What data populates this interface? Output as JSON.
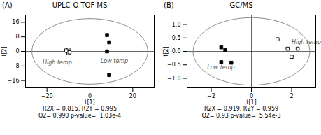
{
  "chart_data": [
    {
      "type": "scatter",
      "label": "(A)",
      "title": "UPLC-Q-TOF MS",
      "xlabel": "t[1]",
      "ylabel": "t[2]",
      "xlim": [
        -30,
        30
      ],
      "ylim": [
        -20,
        20
      ],
      "xticks": [
        -20,
        0,
        20
      ],
      "yticks": [
        -16,
        -8,
        0,
        8,
        16
      ],
      "series": [
        {
          "marker": "open square",
          "color": "black",
          "x": [
            -10,
            -10.5,
            -10,
            -11,
            -9.5
          ],
          "values": [
            1.0,
            0.0,
            -1.0,
            0.5,
            -0.5
          ]
        },
        {
          "marker": "filled square",
          "color": "black",
          "x": [
            8,
            9,
            8,
            9
          ],
          "values": [
            9,
            5,
            0,
            -13
          ]
        }
      ],
      "annotations": [
        {
          "text": "High temp",
          "x": -22,
          "y": -5,
          "color": "#555555"
        },
        {
          "text": "Low temp",
          "x": 5,
          "y": -4,
          "color": "#555555"
        }
      ],
      "ellipse": {
        "cx": 0,
        "cy": 0,
        "width": 54,
        "height": 36,
        "color": "#888888"
      },
      "hlines": [
        0
      ],
      "vlines": [
        0
      ],
      "caption": [
        "R2X = 0.815, R2Y = 0.995",
        "Q2= 0.990 p-value=  1.03e-4"
      ]
    },
    {
      "type": "scatter",
      "label": "(B)",
      "title": "GC/MS",
      "xlabel": "t[1]",
      "ylabel": "t[2]",
      "xlim": [
        -3.2,
        3.2
      ],
      "ylim": [
        -1.35,
        1.35
      ],
      "xticks": [
        -2.0,
        0.0,
        2.0
      ],
      "yticks": [
        {
          "value": -1.0,
          "label": "−1.0"
        },
        -0.5,
        {
          "value": 0.0,
          "label": "0.0"
        },
        0.5,
        {
          "value": 1.0,
          "label": "1.0"
        }
      ],
      "series": [
        {
          "marker": "open square",
          "color": "black",
          "x": [
            1.3,
            1.8,
            2.3,
            2.0
          ],
          "values": [
            0.45,
            0.1,
            0.1,
            -0.2
          ]
        },
        {
          "marker": "filled square",
          "color": "black",
          "x": [
            -1.5,
            -1.3,
            -1.5,
            -1.0
          ],
          "values": [
            0.15,
            0.05,
            -0.4,
            -0.42
          ]
        }
      ],
      "annotations": [
        {
          "text": "High temp",
          "x": 2.0,
          "y": 0.42,
          "color": "#555555"
        },
        {
          "text": "Low temp",
          "x": -2.2,
          "y": -0.52,
          "color": "#555555"
        }
      ],
      "ellipse": {
        "cx": 0,
        "cy": 0,
        "width": 5.8,
        "height": 2.5,
        "color": "#888888"
      },
      "hlines": [
        0
      ],
      "vlines": [
        0
      ],
      "caption": [
        "R2X = 0.919, R2Y = 0.959",
        "Q2= 0.93 p-value=  5.54e-3"
      ]
    }
  ]
}
